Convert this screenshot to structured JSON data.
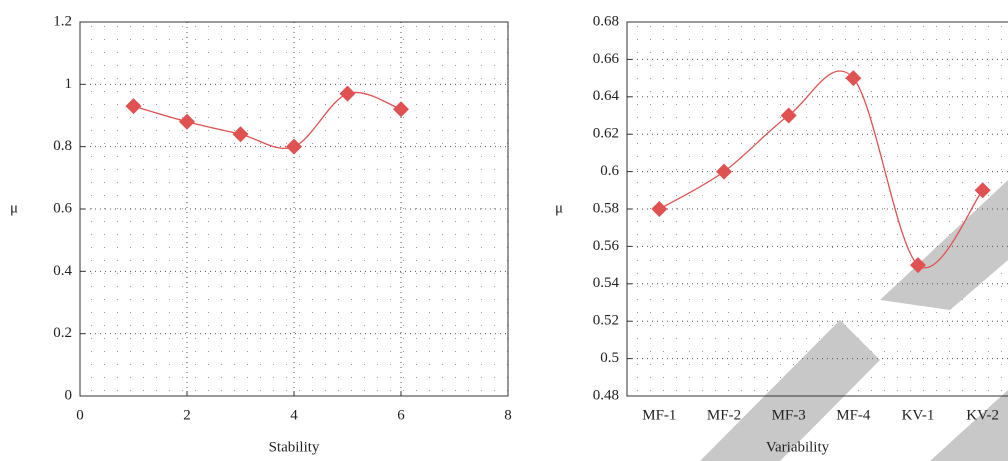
{
  "chart_data": [
    {
      "type": "line",
      "x": [
        1,
        2,
        3,
        4,
        5,
        6
      ],
      "values": [
        0.93,
        0.88,
        0.84,
        0.8,
        0.97,
        0.92
      ],
      "color": "#e05252",
      "xlim": [
        0,
        8
      ],
      "xticks": [
        0,
        2,
        4,
        6,
        8
      ],
      "ylim": [
        0,
        1.2
      ],
      "yticks": [
        0,
        0.2,
        0.4,
        0.6,
        0.8,
        1,
        1.2
      ],
      "xlabel": "Stability",
      "ylabel": "μ",
      "grid": true,
      "smooth": true
    },
    {
      "type": "line",
      "categories": [
        "MF-1",
        "MF-2",
        "MF-3",
        "MF-4",
        "KV-1",
        "KV-2"
      ],
      "values": [
        0.58,
        0.6,
        0.63,
        0.65,
        0.55,
        0.59
      ],
      "color": "#e05252",
      "ylim": [
        0.48,
        0.68
      ],
      "yticks": [
        0.48,
        0.5,
        0.52,
        0.54,
        0.56,
        0.58,
        0.6,
        0.62,
        0.64,
        0.66,
        0.68
      ],
      "xlabel": "Variability",
      "ylabel": "μ",
      "grid": true,
      "smooth": true
    }
  ]
}
